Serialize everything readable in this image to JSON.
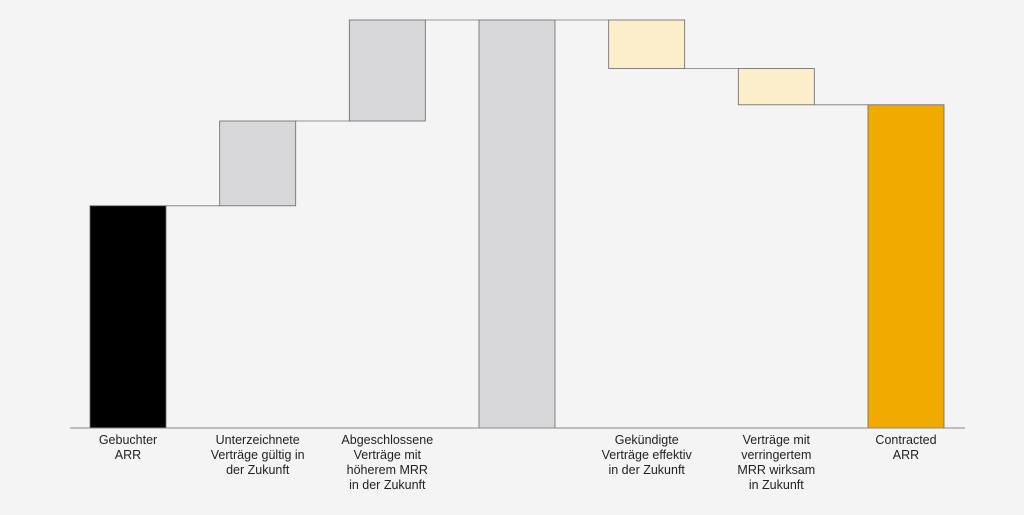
{
  "chart_data": {
    "type": "bar",
    "subtype": "waterfall",
    "title": "",
    "xlabel": "",
    "ylabel": "",
    "ylim": [
      0,
      100
    ],
    "grid": false,
    "legend": "none",
    "steps": [
      {
        "label_lines": [
          "Gebuchter",
          "ARR"
        ],
        "kind": "total",
        "value": 55,
        "color": "#000000"
      },
      {
        "label_lines": [
          "Unterzeichnete",
          "Verträge gültig in",
          "der Zukunft"
        ],
        "kind": "delta",
        "value": 21,
        "color": "#d8d8da"
      },
      {
        "label_lines": [
          "Abgeschlossene",
          "Verträge mit",
          "höherem MRR",
          "in der Zukunft"
        ],
        "kind": "delta",
        "value": 25,
        "color": "#d8d8da"
      },
      {
        "label_lines": [],
        "kind": "total",
        "value": 101,
        "color": "#d8d8da"
      },
      {
        "label_lines": [
          "Gekündigte",
          "Verträge effektiv",
          "in der Zukunft"
        ],
        "kind": "delta",
        "value": -12,
        "color": "#fdeecb"
      },
      {
        "label_lines": [
          "Verträge mit",
          "verringertem",
          "MRR wirksam",
          "in Zukunft"
        ],
        "kind": "delta",
        "value": -9,
        "color": "#fdeecb"
      },
      {
        "label_lines": [
          "Contracted",
          "ARR"
        ],
        "kind": "total",
        "value": 80,
        "color": "#f0aa00"
      }
    ]
  }
}
